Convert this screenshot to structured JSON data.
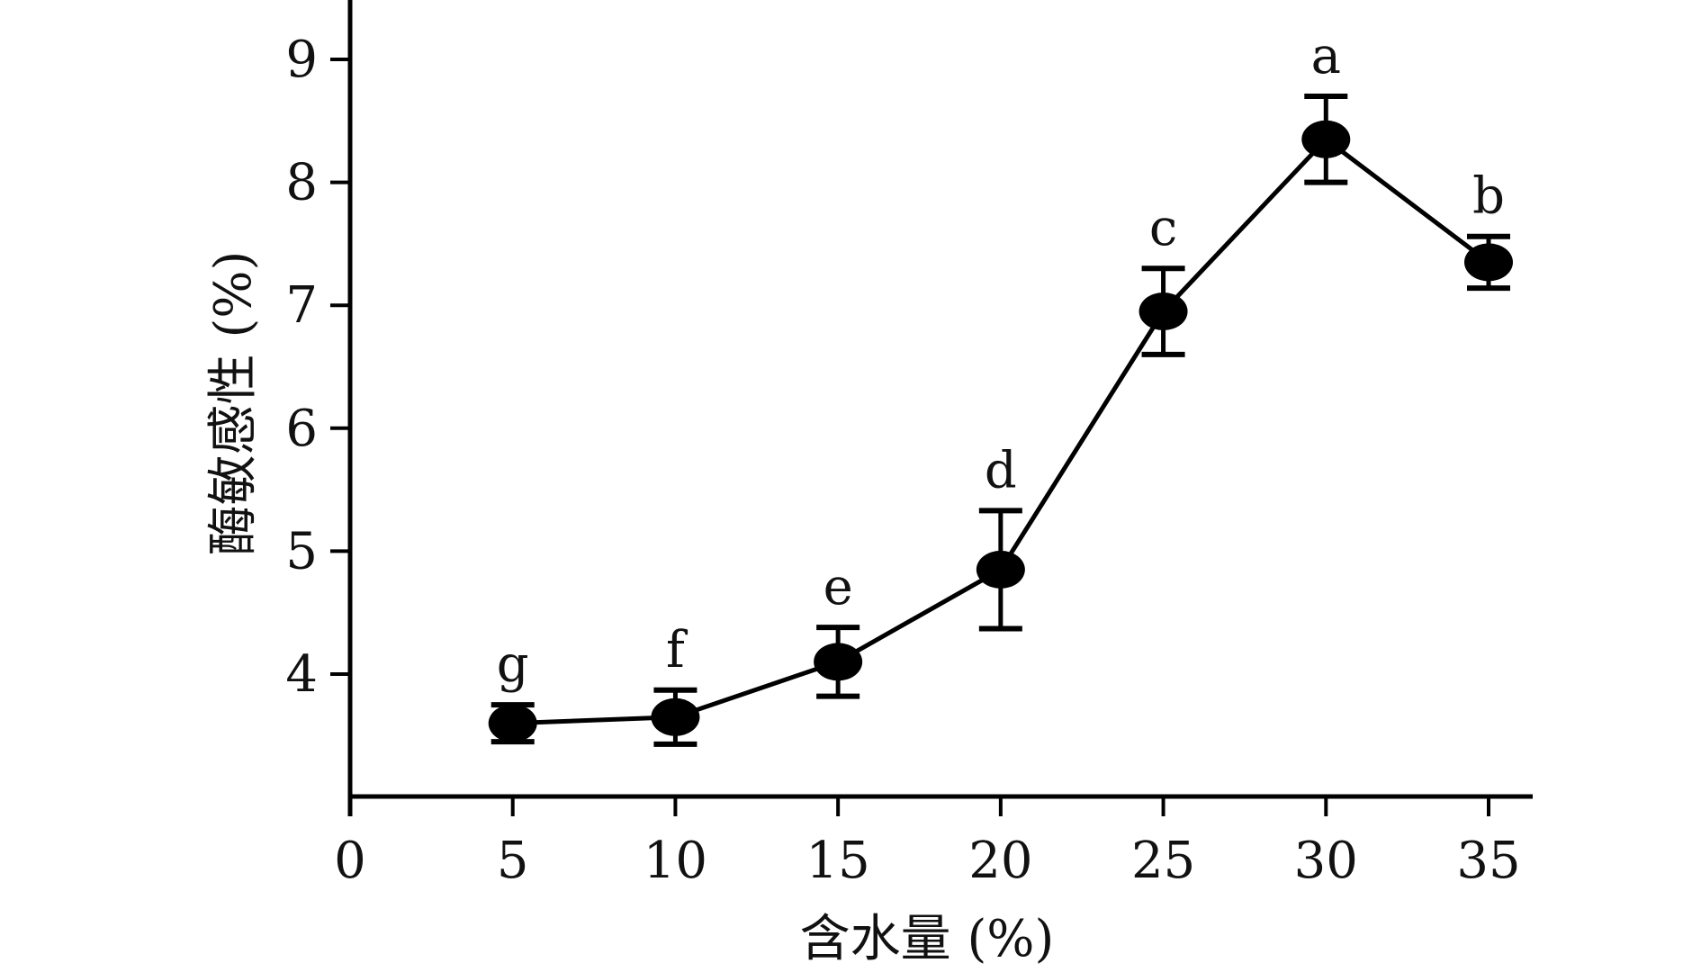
{
  "chart_data": {
    "type": "line",
    "xlabel": "含水量 (%)",
    "ylabel": "酶敏感性 (%)",
    "xlim": [
      0,
      37
    ],
    "ylim": [
      3,
      9.5
    ],
    "x_ticks": [
      "0",
      "5",
      "10",
      "15",
      "20",
      "25",
      "30",
      "35"
    ],
    "y_ticks": [
      "4",
      "5",
      "6",
      "7",
      "8",
      "9"
    ],
    "grid": false,
    "legend": "none",
    "color": "#000000",
    "series": [
      {
        "x": [
          5,
          10,
          15,
          20,
          25,
          30,
          35
        ],
        "y": [
          3.6,
          3.65,
          4.1,
          4.85,
          6.95,
          8.35,
          7.35
        ],
        "error": [
          0.15,
          0.22,
          0.28,
          0.48,
          0.35,
          0.35,
          0.21
        ],
        "significance": [
          "g",
          "f",
          "e",
          "d",
          "c",
          "a",
          "b"
        ]
      }
    ]
  }
}
